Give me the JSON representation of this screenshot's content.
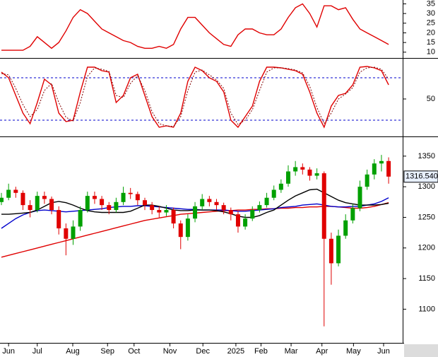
{
  "chart_data": [
    {
      "type": "line",
      "ylim": [
        7,
        37
      ],
      "yticks": [
        10,
        15,
        20,
        25,
        30,
        35
      ],
      "series": [
        {
          "color": "#e00000",
          "values": [
            11,
            11,
            11,
            11,
            13,
            18,
            15,
            12,
            15,
            21,
            28,
            32,
            30,
            26,
            22,
            20,
            18,
            16,
            15,
            13,
            12,
            12,
            13,
            12,
            14,
            22,
            28,
            28,
            24,
            20,
            17,
            14,
            13,
            19,
            22,
            22,
            20,
            19,
            19,
            22,
            28,
            33,
            35,
            30,
            23,
            34,
            34,
            32,
            33,
            27,
            22,
            20,
            18,
            16,
            14
          ]
        }
      ]
    },
    {
      "type": "line",
      "ylim": [
        -2,
        107
      ],
      "yticks": [
        50
      ],
      "levels": [
        80,
        20
      ],
      "level_color": "#0000cc",
      "series": [
        {
          "color": "#e00000",
          "values": [
            88,
            80,
            55,
            30,
            15,
            45,
            78,
            70,
            30,
            18,
            20,
            60,
            95,
            95,
            90,
            88,
            45,
            55,
            80,
            85,
            55,
            25,
            10,
            12,
            10,
            30,
            75,
            95,
            90,
            80,
            75,
            60,
            20,
            10,
            25,
            40,
            75,
            95,
            95,
            94,
            92,
            90,
            85,
            60,
            30,
            10,
            40,
            55,
            58,
            70,
            95,
            96,
            94,
            90,
            70
          ]
        },
        {
          "color": "#800000",
          "dashed": true,
          "values": [
            86,
            84,
            65,
            42,
            25,
            35,
            62,
            72,
            45,
            24,
            19,
            45,
            82,
            94,
            92,
            89,
            55,
            52,
            72,
            83,
            62,
            32,
            15,
            12,
            11,
            25,
            62,
            88,
            91,
            84,
            77,
            65,
            30,
            14,
            20,
            35,
            62,
            88,
            94,
            94,
            93,
            91,
            87,
            68,
            38,
            15,
            30,
            50,
            57,
            66,
            88,
            94,
            95,
            92,
            78
          ]
        }
      ]
    },
    {
      "type": "candlestick",
      "ylim": [
        1045,
        1381
      ],
      "yticks": [
        1100,
        1150,
        1200,
        1250,
        1300,
        1350
      ],
      "up_color": "#00a000",
      "down_color": "#e00000",
      "ohlc": [
        [
          1275,
          1290,
          1270,
          1282
        ],
        [
          1282,
          1305,
          1278,
          1295
        ],
        [
          1295,
          1300,
          1282,
          1290
        ],
        [
          1290,
          1294,
          1262,
          1270
        ],
        [
          1270,
          1278,
          1250,
          1262
        ],
        [
          1262,
          1292,
          1258,
          1285
        ],
        [
          1285,
          1292,
          1272,
          1280
        ],
        [
          1280,
          1284,
          1255,
          1262
        ],
        [
          1262,
          1268,
          1222,
          1232
        ],
        [
          1232,
          1240,
          1188,
          1215
        ],
        [
          1215,
          1245,
          1205,
          1235
        ],
        [
          1235,
          1268,
          1228,
          1262
        ],
        [
          1262,
          1292,
          1258,
          1285
        ],
        [
          1285,
          1292,
          1272,
          1280
        ],
        [
          1280,
          1285,
          1262,
          1270
        ],
        [
          1270,
          1275,
          1255,
          1262
        ],
        [
          1262,
          1282,
          1258,
          1275
        ],
        [
          1275,
          1300,
          1270,
          1290
        ],
        [
          1290,
          1298,
          1280,
          1288
        ],
        [
          1288,
          1292,
          1270,
          1278
        ],
        [
          1278,
          1282,
          1262,
          1270
        ],
        [
          1270,
          1275,
          1255,
          1262
        ],
        [
          1262,
          1268,
          1250,
          1258
        ],
        [
          1258,
          1270,
          1252,
          1262
        ],
        [
          1262,
          1266,
          1232,
          1240
        ],
        [
          1240,
          1245,
          1198,
          1218
        ],
        [
          1218,
          1255,
          1212,
          1248
        ],
        [
          1248,
          1275,
          1242,
          1268
        ],
        [
          1268,
          1288,
          1262,
          1280
        ],
        [
          1280,
          1285,
          1268,
          1275
        ],
        [
          1275,
          1280,
          1262,
          1270
        ],
        [
          1270,
          1274,
          1255,
          1262
        ],
        [
          1262,
          1266,
          1245,
          1255
        ],
        [
          1255,
          1260,
          1225,
          1235
        ],
        [
          1235,
          1255,
          1230,
          1248
        ],
        [
          1248,
          1268,
          1244,
          1262
        ],
        [
          1262,
          1276,
          1258,
          1270
        ],
        [
          1270,
          1290,
          1266,
          1282
        ],
        [
          1282,
          1302,
          1278,
          1295
        ],
        [
          1295,
          1312,
          1290,
          1305
        ],
        [
          1305,
          1335,
          1300,
          1325
        ],
        [
          1325,
          1342,
          1318,
          1332
        ],
        [
          1332,
          1338,
          1320,
          1328
        ],
        [
          1328,
          1332,
          1310,
          1318
        ],
        [
          1318,
          1330,
          1312,
          1322
        ],
        [
          1322,
          1325,
          1072,
          1215
        ],
        [
          1215,
          1225,
          1140,
          1175
        ],
        [
          1175,
          1230,
          1170,
          1220
        ],
        [
          1220,
          1255,
          1215,
          1245
        ],
        [
          1245,
          1272,
          1240,
          1265
        ],
        [
          1265,
          1310,
          1260,
          1300
        ],
        [
          1300,
          1328,
          1295,
          1320
        ],
        [
          1320,
          1345,
          1312,
          1338
        ],
        [
          1338,
          1352,
          1325,
          1342
        ],
        [
          1342,
          1348,
          1305,
          1316.54
        ]
      ],
      "last_label": "1316.540",
      "series": [
        {
          "color": "#e00000",
          "values": [
            1185,
            1188,
            1191,
            1194,
            1197,
            1200,
            1203,
            1206,
            1209,
            1212,
            1215,
            1218,
            1221,
            1224,
            1227,
            1230,
            1233,
            1236,
            1239,
            1242,
            1245,
            1247,
            1249,
            1251,
            1253,
            1255,
            1256,
            1257,
            1258,
            1259,
            1260,
            1261,
            1261,
            1262,
            1262,
            1263,
            1263,
            1264,
            1264,
            1265,
            1265,
            1266,
            1266,
            1267,
            1267,
            1268,
            1268,
            1267,
            1266,
            1265,
            1265,
            1266,
            1268,
            1271,
            1274
          ]
        },
        {
          "color": "#0000cc",
          "values": [
            1232,
            1240,
            1248,
            1254,
            1258,
            1261,
            1262,
            1261,
            1260,
            1259,
            1260,
            1261,
            1262,
            1263,
            1264,
            1266,
            1267,
            1268,
            1268,
            1269,
            1269,
            1268,
            1267,
            1266,
            1265,
            1264,
            1263,
            1263,
            1262,
            1262,
            1262,
            1262,
            1261,
            1260,
            1260,
            1261,
            1262,
            1263,
            1264,
            1266,
            1267,
            1268,
            1270,
            1271,
            1272,
            1270,
            1268,
            1267,
            1267,
            1268,
            1268,
            1270,
            1272,
            1276,
            1282
          ]
        },
        {
          "color": "#000000",
          "values": [
            1255,
            1255,
            1256,
            1257,
            1258,
            1262,
            1268,
            1274,
            1276,
            1274,
            1270,
            1265,
            1261,
            1259,
            1258,
            1258,
            1258,
            1258,
            1260,
            1265,
            1270,
            1270,
            1268,
            1265,
            1262,
            1261,
            1261,
            1262,
            1262,
            1262,
            1261,
            1259,
            1256,
            1252,
            1250,
            1250,
            1253,
            1258,
            1262,
            1270,
            1278,
            1285,
            1290,
            1295,
            1296,
            1290,
            1284,
            1278,
            1274,
            1272,
            1270,
            1270,
            1270,
            1271,
            1273
          ]
        }
      ],
      "xticks": [
        {
          "value": 1,
          "label": "Jun"
        },
        {
          "value": 5,
          "label": "Jul"
        },
        {
          "value": 9.95,
          "label": "Aug"
        },
        {
          "value": 14.8,
          "label": "Sep"
        },
        {
          "value": 18.5,
          "label": "Oct"
        },
        {
          "value": 23.5,
          "label": "Nov"
        },
        {
          "value": 28.1,
          "label": "Dec"
        },
        {
          "value": 32.7,
          "label": "2025"
        },
        {
          "value": 36.2,
          "label": "Feb"
        },
        {
          "value": 40.4,
          "label": "Mar"
        },
        {
          "value": 44.7,
          "label": "Apr"
        },
        {
          "value": 49.1,
          "label": "May"
        },
        {
          "value": 53.3,
          "label": "Jun"
        }
      ]
    }
  ]
}
